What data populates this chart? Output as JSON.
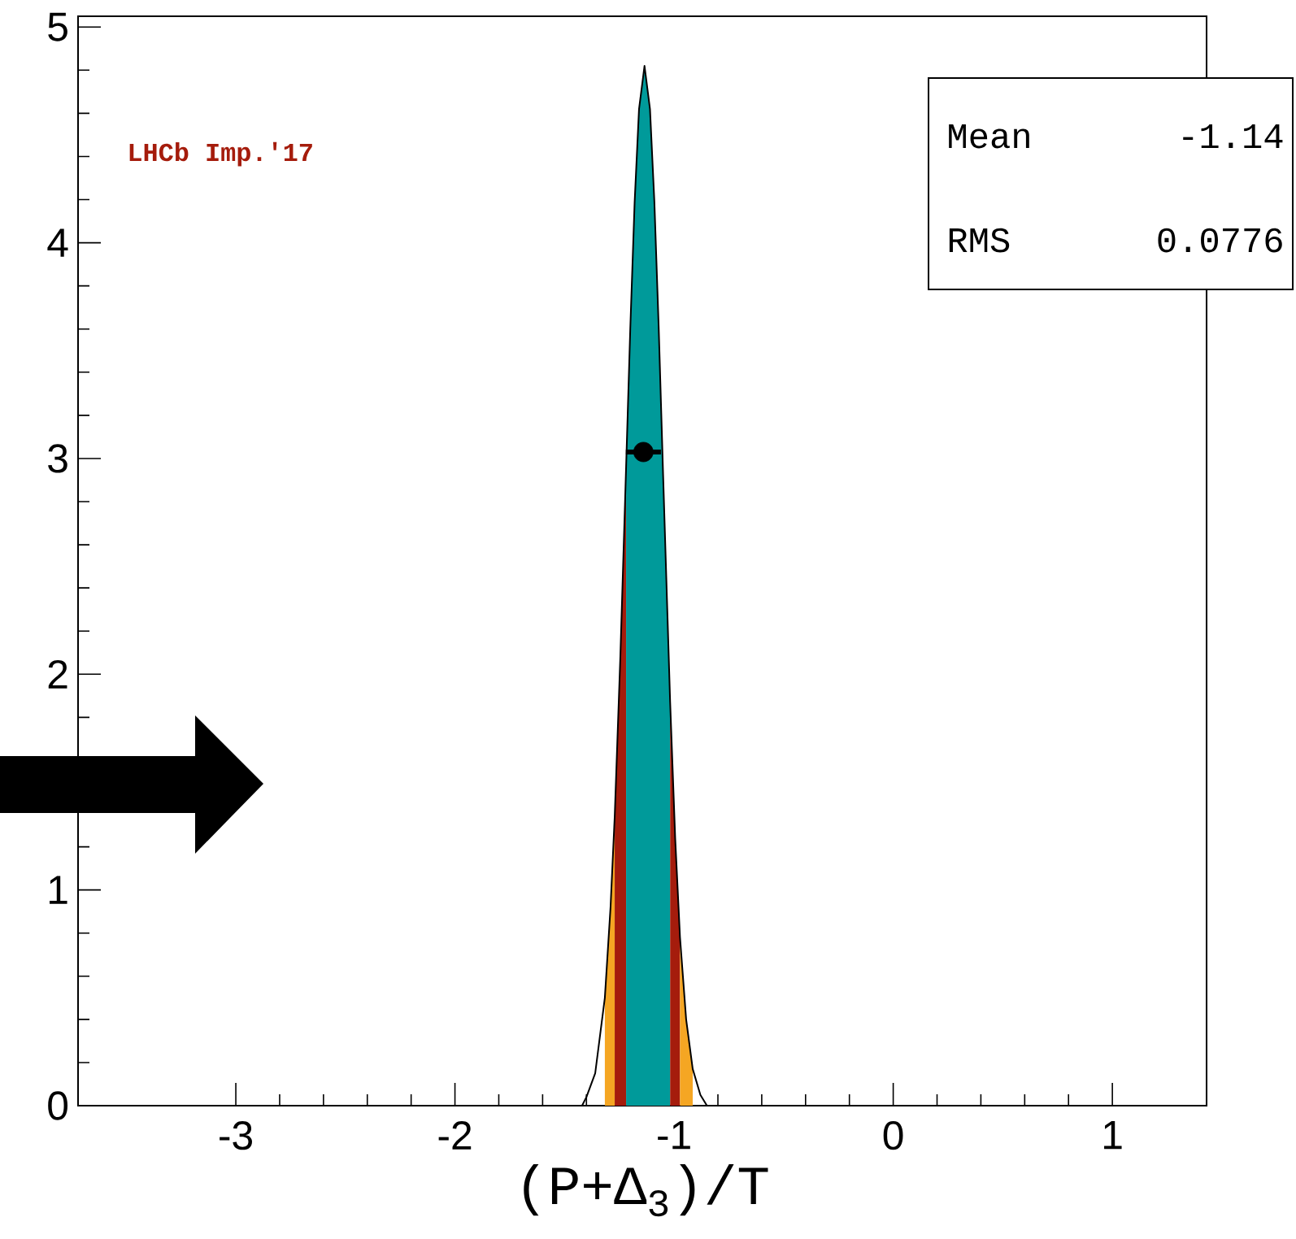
{
  "chart_data": {
    "type": "area",
    "xlabel": "(P+Δ$_{3}$)/T",
    "xlim": [
      -3.72,
      1.43
    ],
    "ylim": [
      0,
      5.05
    ],
    "xticks": [
      -3,
      -2,
      -1,
      0,
      1
    ],
    "yticks": [
      0,
      1,
      2,
      3,
      4,
      5
    ],
    "grid": false,
    "series": [
      {
        "color": "#f5a623",
        "x": [
          -1.316,
          -1.29,
          -1.271
        ],
        "values": [
          0.5,
          0.92,
          1.34
        ]
      },
      {
        "color": "#a51c0c",
        "x": [
          -1.271,
          -1.245,
          -1.219
        ],
        "values": [
          1.34,
          2.09,
          2.96
        ]
      },
      {
        "color": "#009a9a",
        "x": [
          -1.219,
          -1.2,
          -1.18,
          -1.16,
          -1.135,
          -1.11,
          -1.09,
          -1.07,
          -1.05,
          -1.018
        ],
        "values": [
          2.96,
          3.6,
          4.19,
          4.62,
          4.82,
          4.62,
          4.19,
          3.6,
          2.92,
          1.87
        ]
      },
      {
        "color": "#a51c0c",
        "x": [
          -1.018,
          -0.995,
          -0.973
        ],
        "values": [
          1.87,
          1.24,
          0.78
        ]
      },
      {
        "color": "#f5a623",
        "x": [
          -0.973,
          -0.945,
          -0.915
        ],
        "values": [
          0.78,
          0.4,
          0.17
        ]
      },
      {
        "type": "line",
        "color": "#000000",
        "x": [
          -1.42,
          -1.4,
          -1.36,
          -1.316,
          -1.29,
          -1.271,
          -1.245,
          -1.219,
          -1.2,
          -1.18,
          -1.16,
          -1.135,
          -1.11,
          -1.09,
          -1.07,
          -1.05,
          -1.018,
          -0.995,
          -0.973,
          -0.945,
          -0.915,
          -0.88,
          -0.85
        ],
        "values": [
          0,
          0.04,
          0.15,
          0.5,
          0.92,
          1.34,
          2.09,
          2.96,
          3.6,
          4.19,
          4.62,
          4.82,
          4.62,
          4.19,
          3.6,
          2.92,
          1.87,
          1.24,
          0.78,
          0.4,
          0.17,
          0.05,
          0
        ]
      },
      {
        "type": "scatter",
        "color": "#000000",
        "x": [
          -1.14
        ],
        "values": [
          3.03
        ],
        "xerrors": [
          0.08
        ]
      }
    ],
    "annotations": [
      "LHCb Imp.'17",
      "Mean",
      "-1.14",
      "RMS",
      "0.0776"
    ]
  }
}
